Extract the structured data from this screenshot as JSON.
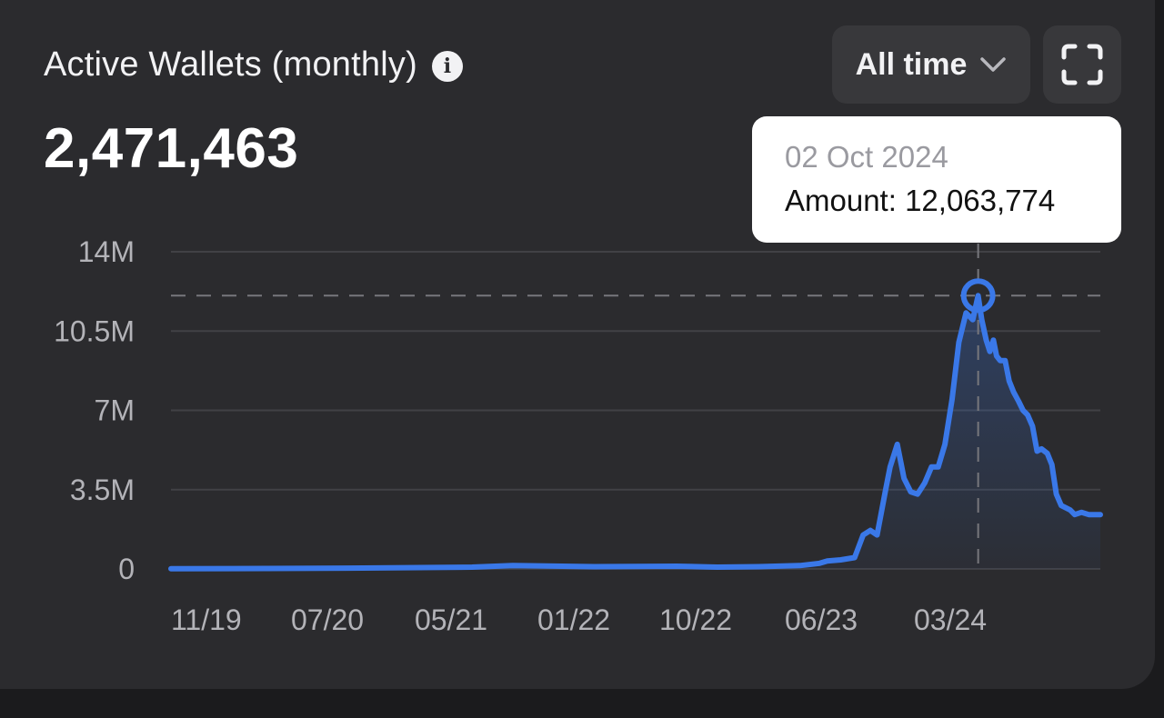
{
  "header": {
    "title": "Active Wallets (monthly)",
    "current_value": "2,471,463"
  },
  "controls": {
    "range_label": "All time",
    "fullscreen_icon": "fullscreen-icon",
    "info_icon": "info-icon",
    "chevron_icon": "chevron-down-icon"
  },
  "tooltip": {
    "date": "02 Oct 2024",
    "amount_label": "Amount: 12,063,774"
  },
  "colors": {
    "line": "#3a78e8",
    "grid": "#414145",
    "background": "#2b2b2e"
  },
  "chart_data": {
    "type": "area",
    "title": "Active Wallets (monthly)",
    "xlabel": "",
    "ylabel": "",
    "ylim": [
      0,
      14000000
    ],
    "y_ticks": [
      0,
      3500000,
      7000000,
      10500000,
      14000000
    ],
    "y_tick_labels": [
      "0",
      "3.5M",
      "7M",
      "10.5M",
      "14M"
    ],
    "x_tick_labels": [
      "11/19",
      "07/20",
      "05/21",
      "01/22",
      "10/22",
      "06/23",
      "03/24"
    ],
    "x_range": [
      "2019-11-01",
      "2025-07-01"
    ],
    "grid": true,
    "legend": "none",
    "highlight": {
      "x": "2024-10-02",
      "y": 12063774
    },
    "series": [
      {
        "x": [
          "2019-11-01",
          "2020-06-01",
          "2021-01-01",
          "2021-09-01",
          "2021-12-01",
          "2022-06-01",
          "2022-12-01",
          "2023-03-01",
          "2023-06-01",
          "2023-09-01",
          "2023-10-15",
          "2023-11-01",
          "2023-12-01",
          "2024-01-01",
          "2024-01-20",
          "2024-02-05",
          "2024-02-20",
          "2024-03-10",
          "2024-03-20",
          "2024-04-05",
          "2024-04-20",
          "2024-05-05",
          "2024-05-20",
          "2024-06-05",
          "2024-06-20",
          "2024-07-05",
          "2024-07-20",
          "2024-08-05",
          "2024-08-20",
          "2024-09-05",
          "2024-09-20",
          "2024-10-02",
          "2024-10-10",
          "2024-10-20",
          "2024-10-28",
          "2024-11-05",
          "2024-11-12",
          "2024-11-20",
          "2024-12-01",
          "2024-12-10",
          "2024-12-20",
          "2024-12-31",
          "2025-01-10",
          "2025-01-20",
          "2025-01-31",
          "2025-02-10",
          "2025-02-20",
          "2025-03-05",
          "2025-03-15",
          "2025-03-25",
          "2025-04-05",
          "2025-04-15",
          "2025-04-25",
          "2025-05-05",
          "2025-05-20",
          "2025-06-05",
          "2025-06-20",
          "2025-07-01"
        ],
        "values": [
          10000,
          20000,
          40000,
          80000,
          150000,
          100000,
          120000,
          80000,
          100000,
          150000,
          250000,
          350000,
          400000,
          500000,
          1500000,
          1700000,
          1500000,
          3500000,
          4500000,
          5500000,
          4000000,
          3400000,
          3300000,
          3800000,
          4500000,
          4500000,
          5500000,
          7500000,
          10000000,
          11300000,
          11000000,
          12063774,
          11000000,
          10100000,
          9600000,
          10100000,
          9400000,
          9200000,
          9200000,
          8300000,
          7800000,
          7400000,
          7000000,
          6800000,
          6300000,
          5200000,
          5300000,
          5100000,
          4600000,
          3300000,
          2800000,
          2700000,
          2600000,
          2400000,
          2500000,
          2400000,
          2400000,
          2400000
        ]
      }
    ]
  }
}
